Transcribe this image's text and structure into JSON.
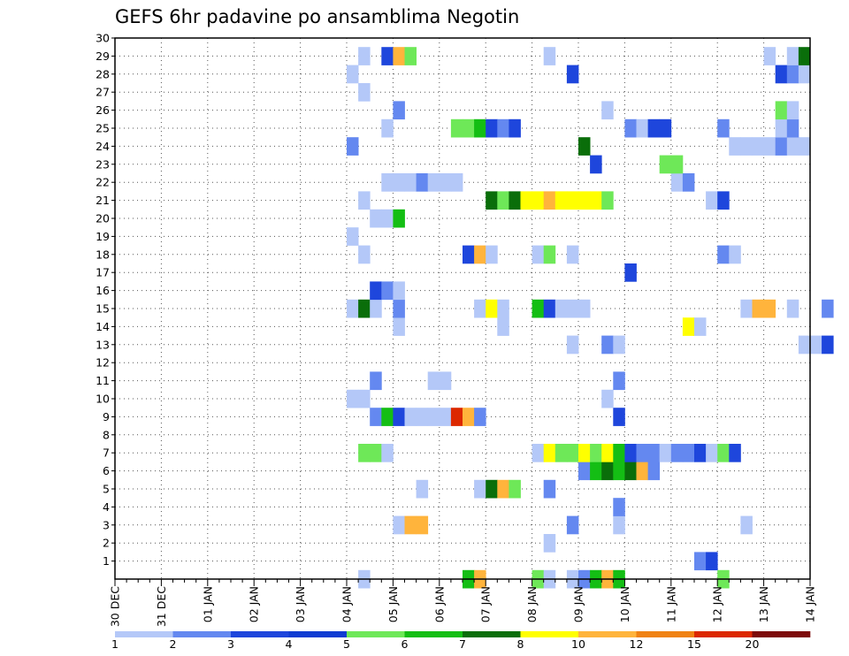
{
  "chart_data": {
    "type": "heatmap",
    "title": "GEFS 6hr padavine po ansamblima Negotin",
    "xlabel": "",
    "ylabel": "",
    "x_ticks": [
      "30 DEC",
      "31 DEC",
      "01 JAN",
      "02 JAN",
      "03 JAN",
      "04 JAN",
      "05 JAN",
      "06 JAN",
      "07 JAN",
      "08 JAN",
      "09 JAN",
      "10 JAN",
      "11 JAN",
      "12 JAN",
      "13 JAN",
      "14 JAN"
    ],
    "x_step_hours": 6,
    "y_ticks": [
      "1",
      "2",
      "3",
      "4",
      "5",
      "6",
      "7",
      "8",
      "9",
      "10",
      "11",
      "12",
      "13",
      "14",
      "15",
      "16",
      "17",
      "18",
      "19",
      "20",
      "21",
      "22",
      "23",
      "24",
      "25",
      "26",
      "27",
      "28",
      "29",
      "30"
    ],
    "y_range": [
      0,
      30
    ],
    "grid": true,
    "colorbar": {
      "placement": "bottom",
      "labels": [
        "1",
        "2",
        "3",
        "4",
        "5",
        "6",
        "7",
        "8",
        "10",
        "12",
        "15",
        "20"
      ],
      "colors": [
        "#b4c8f8",
        "#6488f0",
        "#1e46dc",
        "#0f3cd2",
        "#6ee858",
        "#14be14",
        "#0a6e0a",
        "#ffff00",
        "#ffb43c",
        "#f08214",
        "#dc2800",
        "#7d0a0a"
      ]
    },
    "series": [
      {
        "member": 0,
        "cells": [
          [
            "Jan 04 06",
            1
          ],
          [
            "Jan 06 12",
            6
          ],
          [
            "Jan 06 18",
            10
          ],
          [
            "Jan 08 00",
            5
          ],
          [
            "Jan 08 06",
            1
          ],
          [
            "Jan 08 18",
            1
          ],
          [
            "Jan 09 00",
            2
          ],
          [
            "Jan 09 06",
            6
          ],
          [
            "Jan 09 12",
            10
          ],
          [
            "Jan 09 18",
            6
          ],
          [
            "Jan 12 00",
            5
          ]
        ]
      },
      {
        "member": 1,
        "cells": [
          [
            "Jan 11 12",
            2
          ],
          [
            "Jan 11 18",
            3
          ]
        ]
      },
      {
        "member": 2,
        "cells": [
          [
            "Jan 08 06",
            1
          ]
        ]
      },
      {
        "member": 3,
        "cells": [
          [
            "Jan 05 00",
            1
          ],
          [
            "Jan 05 06",
            10
          ],
          [
            "Jan 05 12",
            10
          ],
          [
            "Jan 08 18",
            2
          ],
          [
            "Jan 09 18",
            1
          ],
          [
            "Jan 12 12",
            1
          ]
        ]
      },
      {
        "member": 4,
        "cells": [
          [
            "Jan 09 18",
            2
          ]
        ]
      },
      {
        "member": 5,
        "cells": [
          [
            "Jan 05 12",
            1
          ],
          [
            "Jan 06 18",
            1
          ],
          [
            "Jan 07 00",
            7
          ],
          [
            "Jan 07 06",
            10
          ],
          [
            "Jan 07 12",
            5
          ],
          [
            "Jan 08 06",
            2
          ]
        ]
      },
      {
        "member": 6,
        "cells": [
          [
            "Jan 09 00",
            2
          ],
          [
            "Jan 09 06",
            6
          ],
          [
            "Jan 09 12",
            7
          ],
          [
            "Jan 09 18",
            6
          ],
          [
            "Jan 10 00",
            7
          ],
          [
            "Jan 10 06",
            10
          ],
          [
            "Jan 10 12",
            2
          ]
        ]
      },
      {
        "member": 7,
        "cells": [
          [
            "Jan 04 06",
            5
          ],
          [
            "Jan 04 12",
            5
          ],
          [
            "Jan 04 18",
            1
          ],
          [
            "Jan 08 00",
            1
          ],
          [
            "Jan 08 06",
            8
          ],
          [
            "Jan 08 12",
            5
          ],
          [
            "Jan 08 18",
            5
          ],
          [
            "Jan 09 00",
            8
          ],
          [
            "Jan 09 06",
            5
          ],
          [
            "Jan 09 12",
            8
          ],
          [
            "Jan 09 18",
            6
          ],
          [
            "Jan 10 00",
            3
          ],
          [
            "Jan 10 06",
            2
          ],
          [
            "Jan 10 12",
            2
          ],
          [
            "Jan 10 18",
            1
          ],
          [
            "Jan 11 00",
            2
          ],
          [
            "Jan 11 06",
            2
          ],
          [
            "Jan 11 12",
            3
          ],
          [
            "Jan 11 18",
            1
          ],
          [
            "Jan 12 00",
            5
          ],
          [
            "Jan 12 06",
            3
          ]
        ]
      },
      {
        "member": 9,
        "cells": [
          [
            "Jan 04 12",
            2
          ],
          [
            "Jan 04 18",
            6
          ],
          [
            "Jan 05 00",
            3
          ],
          [
            "Jan 05 06",
            1
          ],
          [
            "Jan 05 12",
            1
          ],
          [
            "Jan 05 18",
            1
          ],
          [
            "Jan 06 00",
            1
          ],
          [
            "Jan 06 06",
            15
          ],
          [
            "Jan 06 12",
            10
          ],
          [
            "Jan 06 18",
            2
          ],
          [
            "Jan 09 18",
            3
          ]
        ]
      },
      {
        "member": 10,
        "cells": [
          [
            "Jan 04 00",
            1
          ],
          [
            "Jan 04 06",
            1
          ],
          [
            "Jan 09 12",
            1
          ]
        ]
      },
      {
        "member": 11,
        "cells": [
          [
            "Jan 04 12",
            2
          ],
          [
            "Jan 05 18",
            1
          ],
          [
            "Jan 06 00",
            1
          ],
          [
            "Jan 09 18",
            2
          ]
        ]
      },
      {
        "member": 13,
        "cells": [
          [
            "Jan 08 18",
            1
          ],
          [
            "Jan 09 12",
            2
          ],
          [
            "Jan 09 18",
            1
          ],
          [
            "Jan 13 18",
            1
          ],
          [
            "Jan 14 00",
            1
          ],
          [
            "Jan 14 06",
            3
          ]
        ]
      },
      {
        "member": 14,
        "cells": [
          [
            "Jan 05 00",
            1
          ],
          [
            "Jan 07 06",
            1
          ],
          [
            "Jan 11 06",
            8
          ],
          [
            "Jan 11 12",
            1
          ]
        ]
      },
      {
        "member": 15,
        "cells": [
          [
            "Jan 04 00",
            1
          ],
          [
            "Jan 04 06",
            7
          ],
          [
            "Jan 04 12",
            1
          ],
          [
            "Jan 05 00",
            2
          ],
          [
            "Jan 06 18",
            1
          ],
          [
            "Jan 07 00",
            9
          ],
          [
            "Jan 07 06",
            1
          ],
          [
            "Jan 08 00",
            6
          ],
          [
            "Jan 08 06",
            3
          ],
          [
            "Jan 08 12",
            1
          ],
          [
            "Jan 08 18",
            1
          ],
          [
            "Jan 09 00",
            1
          ],
          [
            "Jan 12 12",
            1
          ],
          [
            "Jan 12 18",
            10
          ],
          [
            "Jan 13 00",
            10
          ],
          [
            "Jan 13 12",
            1
          ],
          [
            "Jan 14 06",
            2
          ]
        ]
      },
      {
        "member": 16,
        "cells": [
          [
            "Jan 04 12",
            3
          ],
          [
            "Jan 04 18",
            2
          ],
          [
            "Jan 05 00",
            1
          ]
        ]
      },
      {
        "member": 17,
        "cells": [
          [
            "Jan 10 00",
            3
          ]
        ]
      },
      {
        "member": 18,
        "cells": [
          [
            "Jan 04 06",
            1
          ],
          [
            "Jan 06 12",
            3
          ],
          [
            "Jan 06 18",
            10
          ],
          [
            "Jan 07 00",
            1
          ],
          [
            "Jan 08 00",
            1
          ],
          [
            "Jan 08 06",
            5
          ],
          [
            "Jan 08 18",
            1
          ],
          [
            "Jan 12 00",
            2
          ],
          [
            "Jan 12 06",
            1
          ]
        ]
      },
      {
        "member": 19,
        "cells": [
          [
            "Jan 04 00",
            1
          ]
        ]
      },
      {
        "member": 20,
        "cells": [
          [
            "Jan 04 12",
            1
          ],
          [
            "Jan 04 18",
            1
          ],
          [
            "Jan 05 00",
            6
          ]
        ]
      },
      {
        "member": 21,
        "cells": [
          [
            "Jan 04 06",
            1
          ],
          [
            "Jan 07 00",
            7
          ],
          [
            "Jan 07 06",
            5
          ],
          [
            "Jan 07 12",
            7
          ],
          [
            "Jan 07 18",
            8
          ],
          [
            "Jan 08 00",
            9
          ],
          [
            "Jan 08 06",
            10
          ],
          [
            "Jan 08 12",
            9
          ],
          [
            "Jan 08 18",
            9
          ],
          [
            "Jan 09 00",
            8
          ],
          [
            "Jan 09 06",
            8
          ],
          [
            "Jan 09 12",
            5
          ],
          [
            "Jan 11 18",
            1
          ],
          [
            "Jan 12 00",
            3
          ]
        ]
      },
      {
        "member": 22,
        "cells": [
          [
            "Jan 04 18",
            1
          ],
          [
            "Jan 05 00",
            1
          ],
          [
            "Jan 05 06",
            1
          ],
          [
            "Jan 05 12",
            2
          ],
          [
            "Jan 05 18",
            1
          ],
          [
            "Jan 06 00",
            1
          ],
          [
            "Jan 06 06",
            1
          ],
          [
            "Jan 11 00",
            1
          ],
          [
            "Jan 11 06",
            2
          ]
        ]
      },
      {
        "member": 23,
        "cells": [
          [
            "Jan 09 06",
            3
          ],
          [
            "Jan 10 18",
            5
          ],
          [
            "Jan 11 00",
            5
          ]
        ]
      },
      {
        "member": 24,
        "cells": [
          [
            "Jan 04 00",
            2
          ],
          [
            "Jan 09 00",
            7
          ],
          [
            "Jan 12 06",
            1
          ],
          [
            "Jan 12 12",
            1
          ],
          [
            "Jan 12 18",
            1
          ],
          [
            "Jan 13 00",
            1
          ],
          [
            "Jan 13 06",
            2
          ],
          [
            "Jan 13 12",
            1
          ],
          [
            "Jan 13 18",
            1
          ]
        ]
      },
      {
        "member": 25,
        "cells": [
          [
            "Jan 04 18",
            1
          ],
          [
            "Jan 06 06",
            5
          ],
          [
            "Jan 06 12",
            5
          ],
          [
            "Jan 06 18",
            6
          ],
          [
            "Jan 07 00",
            3
          ],
          [
            "Jan 07 06",
            2
          ],
          [
            "Jan 07 12",
            3
          ],
          [
            "Jan 10 00",
            2
          ],
          [
            "Jan 10 06",
            1
          ],
          [
            "Jan 10 12",
            3
          ],
          [
            "Jan 10 18",
            3
          ],
          [
            "Jan 12 00",
            2
          ],
          [
            "Jan 13 06",
            1
          ],
          [
            "Jan 13 12",
            2
          ]
        ]
      },
      {
        "member": 26,
        "cells": [
          [
            "Jan 05 00",
            2
          ],
          [
            "Jan 09 12",
            1
          ],
          [
            "Jan 13 06",
            5
          ],
          [
            "Jan 13 12",
            1
          ]
        ]
      },
      {
        "member": 27,
        "cells": [
          [
            "Jan 04 06",
            1
          ]
        ]
      },
      {
        "member": 28,
        "cells": [
          [
            "Jan 04 00",
            1
          ],
          [
            "Jan 08 18",
            3
          ],
          [
            "Jan 13 06",
            3
          ],
          [
            "Jan 13 12",
            2
          ],
          [
            "Jan 13 18",
            1
          ]
        ]
      },
      {
        "member": 29,
        "cells": [
          [
            "Jan 04 06",
            1
          ],
          [
            "Jan 04 18",
            3
          ],
          [
            "Jan 05 00",
            10
          ],
          [
            "Jan 05 06",
            5
          ],
          [
            "Jan 08 06",
            1
          ],
          [
            "Jan 13 00",
            1
          ],
          [
            "Jan 13 12",
            1
          ],
          [
            "Jan 13 18",
            7
          ]
        ]
      }
    ]
  }
}
